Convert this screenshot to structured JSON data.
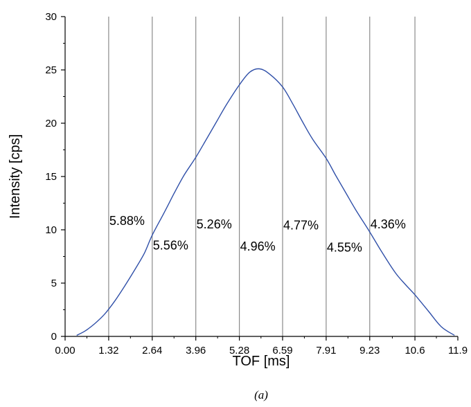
{
  "chart_data": {
    "type": "line",
    "xlabel": "TOF [ms]",
    "ylabel": "Intensity [cps]",
    "caption": "(a)",
    "xlim": [
      0,
      11.9
    ],
    "ylim": [
      0,
      30
    ],
    "x_ticks": [
      "0.00",
      "1.32",
      "2.64",
      "3.96",
      "5.28",
      "6.59",
      "7.91",
      "9.23",
      "10.6",
      "11.9"
    ],
    "y_ticks": [
      "0",
      "5",
      "10",
      "15",
      "20",
      "25",
      "30"
    ],
    "grid": "vertical lines at x ticks 1.32–10.6",
    "line_color": "#2f4fa8",
    "series": [
      {
        "x": [
          0.35,
          0.6,
          0.9,
          1.2,
          1.5,
          1.8,
          2.1,
          2.4,
          2.64,
          3.0,
          3.3,
          3.6,
          3.96,
          4.3,
          4.6,
          4.9,
          5.28,
          5.6,
          5.9,
          6.2,
          6.59,
          6.9,
          7.2,
          7.5,
          7.91,
          8.2,
          8.5,
          8.8,
          9.23,
          9.6,
          10.0,
          10.3,
          10.6,
          11.0,
          11.4,
          11.8
        ],
        "y": [
          0.1,
          0.5,
          1.2,
          2.1,
          3.3,
          4.7,
          6.2,
          7.8,
          9.5,
          11.6,
          13.4,
          15.1,
          16.8,
          18.6,
          20.2,
          21.8,
          23.6,
          24.8,
          25.1,
          24.6,
          23.4,
          21.8,
          20.1,
          18.5,
          16.7,
          15.1,
          13.5,
          11.9,
          9.8,
          7.9,
          6.0,
          4.9,
          3.9,
          2.4,
          0.9,
          0.1
        ]
      }
    ],
    "annotations": [
      {
        "text": "5.88%",
        "x": 1.32,
        "y": 10.9
      },
      {
        "text": "5.56%",
        "x": 2.64,
        "y": 8.6
      },
      {
        "text": "5.26%",
        "x": 3.96,
        "y": 10.6
      },
      {
        "text": "4.96%",
        "x": 5.28,
        "y": 8.5
      },
      {
        "text": "4.77%",
        "x": 6.59,
        "y": 10.5
      },
      {
        "text": "4.55%",
        "x": 7.91,
        "y": 8.4
      },
      {
        "text": "4.36%",
        "x": 9.23,
        "y": 10.6
      }
    ]
  }
}
